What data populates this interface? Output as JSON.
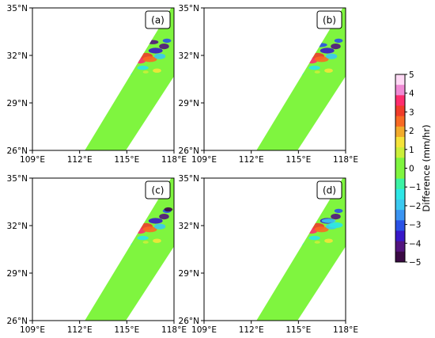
{
  "colors": {
    "background_green": "#7ff53f",
    "frame": "#000000"
  },
  "chart_data": [
    {
      "type": "heatmap",
      "panel_label": "(a)",
      "x_ticks": [
        "109°E",
        "112°E",
        "115°E",
        "118°E"
      ],
      "y_ticks": [
        "35°N",
        "32°N",
        "29°N",
        "26°N"
      ],
      "xlim": [
        109,
        118
      ],
      "ylim": [
        26,
        35
      ],
      "notes": "Difference field along a satellite swath; mostly 0 with positive and negative anomalies near 32°N, 115-118°E"
    },
    {
      "type": "heatmap",
      "panel_label": "(b)",
      "x_ticks": [
        "109°E",
        "112°E",
        "115°E",
        "118°E"
      ],
      "y_ticks": [
        "35°N",
        "32°N",
        "29°N",
        "26°N"
      ],
      "xlim": [
        109,
        118
      ],
      "ylim": [
        26,
        35
      ]
    },
    {
      "type": "heatmap",
      "panel_label": "(c)",
      "x_ticks": [
        "109°E",
        "112°E",
        "115°E",
        "118°E"
      ],
      "y_ticks": [
        "35°N",
        "32°N",
        "29°N",
        "26°N"
      ],
      "xlim": [
        109,
        118
      ],
      "ylim": [
        26,
        35
      ]
    },
    {
      "type": "heatmap",
      "panel_label": "(d)",
      "x_ticks": [
        "109°E",
        "112°E",
        "115°E",
        "118°E"
      ],
      "y_ticks": [
        "35°N",
        "32°N",
        "29°N",
        "26°N"
      ],
      "xlim": [
        109,
        118
      ],
      "ylim": [
        26,
        35
      ]
    }
  ],
  "colorbar": {
    "label": "Difference (mm/hr)",
    "ticks": [
      "5",
      "4",
      "3",
      "2",
      "1",
      "0",
      "−1",
      "−2",
      "−3",
      "−4",
      "−5"
    ],
    "range": [
      -5,
      5
    ],
    "colors": [
      "#ffd9f5",
      "#f08ad4",
      "#ff2d6e",
      "#f03c2a",
      "#f86a24",
      "#f2ab2c",
      "#f5e33a",
      "#cbef3a",
      "#7ff53f",
      "#7ff53f",
      "#3bf2a4",
      "#2ee6e6",
      "#3bc9f0",
      "#3a94f2",
      "#2a52e6",
      "#3818c8",
      "#52147e",
      "#3a0a44"
    ]
  }
}
